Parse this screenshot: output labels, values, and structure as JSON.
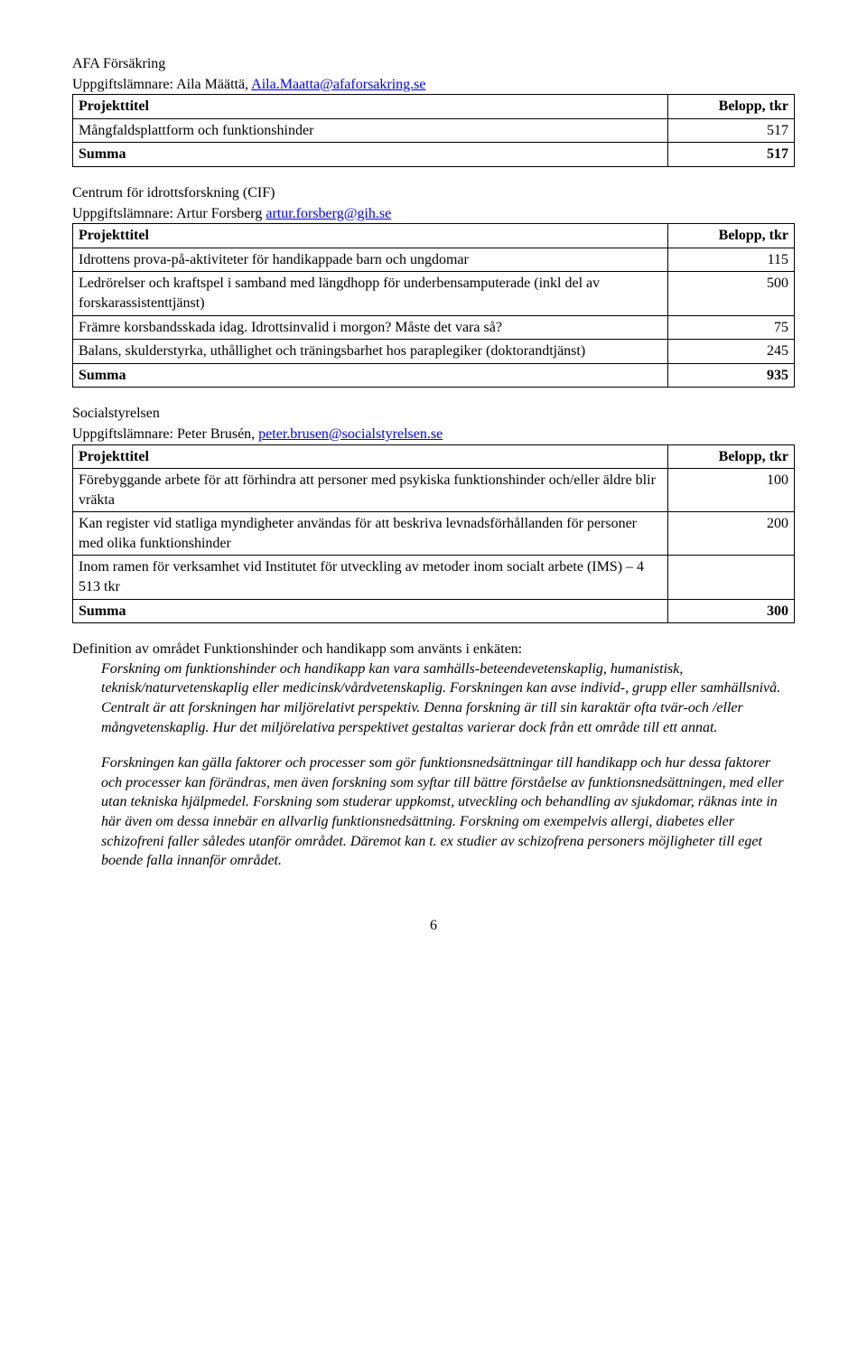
{
  "section1": {
    "title": "AFA Försäkring",
    "uppgift_label": "Uppgiftslämnare: Aila Määttä,  ",
    "uppgift_link": "Aila.Maatta@afaforsakring.se",
    "table": {
      "header": [
        "Projekttitel",
        "Belopp, tkr"
      ],
      "rows": [
        [
          "Mångfaldsplattform och funktionshinder",
          "517"
        ]
      ],
      "summa": [
        "Summa",
        "517"
      ]
    }
  },
  "section2": {
    "title": "Centrum för idrottsforskning (CIF)",
    "uppgift_label": "Uppgiftslämnare: Artur Forsberg ",
    "uppgift_link": "artur.forsberg@gih.se",
    "table": {
      "header": [
        "Projekttitel",
        "Belopp, tkr"
      ],
      "rows": [
        [
          "Idrottens prova-på-aktiviteter för handikappade barn och ungdomar",
          "115"
        ],
        [
          "Ledrörelser och kraftspel i samband med längdhopp för underbensamputerade (inkl del av forskarassistenttjänst)",
          "500"
        ],
        [
          "Främre korsbandsskada idag. Idrottsinvalid i morgon? Måste det vara så?",
          "75"
        ],
        [
          "Balans, skulderstyrka, uthållighet och träningsbarhet hos paraplegiker (doktorandtjänst)",
          "245"
        ]
      ],
      "summa": [
        "Summa",
        "935"
      ]
    }
  },
  "section3": {
    "title": "Socialstyrelsen",
    "uppgift_label": "Uppgiftslämnare: Peter Brusén, ",
    "uppgift_link": "peter.brusen@socialstyrelsen.se",
    "table": {
      "header": [
        "Projekttitel",
        "Belopp, tkr"
      ],
      "rows": [
        [
          "Förebyggande arbete för att förhindra att personer med psykiska funktionshinder och/eller äldre blir vräkta",
          "100"
        ],
        [
          "Kan register vid statliga myndigheter användas för att beskriva levnadsförhållanden för personer med olika funktionshinder",
          "200"
        ],
        [
          "Inom ramen för verksamhet vid Institutet för utveckling av metoder inom socialt arbete (IMS) – 4 513 tkr",
          ""
        ]
      ],
      "summa": [
        "Summa",
        "300"
      ]
    }
  },
  "body": {
    "intro": "Definition av området Funktionshinder och handikapp som använts i enkäten:",
    "p1": "Forskning om funktionshinder och handikapp kan vara samhälls-beteendevetenskaplig, humanistisk, teknisk/naturvetenskaplig eller medicinsk/vårdvetenskaplig. Forskningen kan avse individ-, grupp eller samhällsnivå. Centralt är att forskningen har miljörelativt perspektiv. Denna forskning är till sin karaktär ofta tvär-och /eller mångvetenskaplig. Hur det miljörelativa perspektivet gestaltas varierar dock från ett område till ett annat.",
    "p2": "Forskningen kan gälla faktorer och processer som gör funktionsnedsättningar till handikapp och hur dessa faktorer och processer kan förändras, men även forskning som syftar till bättre förståelse av funktionsnedsättningen, med eller utan tekniska hjälpmedel. Forskning som studerar uppkomst, utveckling och behandling av sjukdomar, räknas inte in här även om dessa innebär en allvarlig funktionsnedsättning. Forskning om exempelvis allergi, diabetes eller schizofreni faller således utanför området. Däremot kan t. ex studier av schizofrena personers möjligheter till eget boende falla innanför området."
  },
  "page_number": "6"
}
